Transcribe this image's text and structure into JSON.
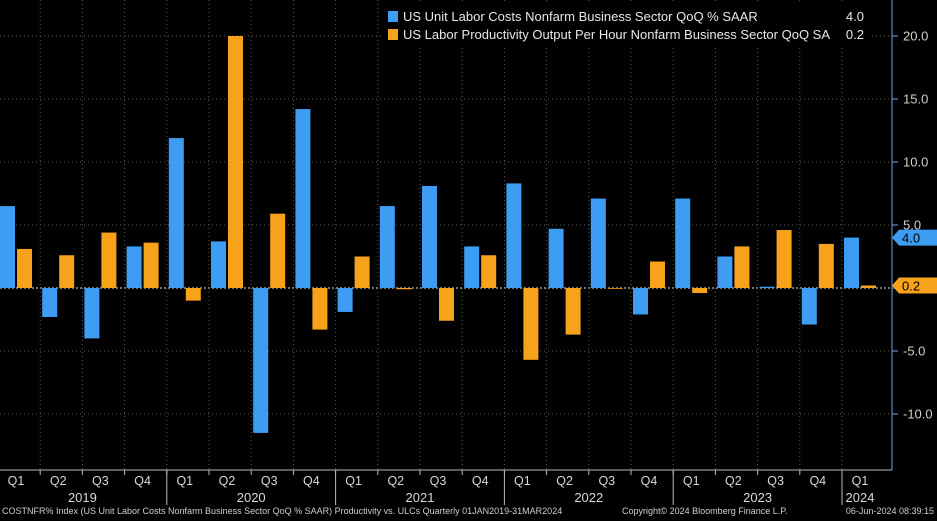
{
  "chart_data": {
    "type": "bar",
    "title": "",
    "xlabel": "",
    "ylabel": "",
    "ylim": [
      -14.5,
      23
    ],
    "yticks": [
      -10,
      -5,
      0,
      5,
      10,
      15,
      20
    ],
    "ytick_labels": [
      "-10.0",
      "-5.0",
      "",
      "5.0",
      "10.0",
      "15.0",
      "20.0"
    ],
    "categories": [
      "Q1",
      "Q2",
      "Q3",
      "Q4",
      "Q1",
      "Q2",
      "Q3",
      "Q4",
      "Q1",
      "Q2",
      "Q3",
      "Q4",
      "Q1",
      "Q2",
      "Q3",
      "Q4",
      "Q1",
      "Q2",
      "Q3",
      "Q4",
      "Q1"
    ],
    "years": [
      {
        "label": "2019",
        "start": 0,
        "count": 4
      },
      {
        "label": "2020",
        "start": 4,
        "count": 4
      },
      {
        "label": "2021",
        "start": 8,
        "count": 4
      },
      {
        "label": "2022",
        "start": 12,
        "count": 4
      },
      {
        "label": "2023",
        "start": 16,
        "count": 4
      },
      {
        "label": "2024",
        "start": 20,
        "count": 1
      }
    ],
    "series": [
      {
        "name": "US Unit Labor Costs Nonfarm Business Sector QoQ % SAAR",
        "last": "4.0",
        "color": "#3d9df3",
        "values": [
          6.5,
          -2.3,
          -4.0,
          3.3,
          11.9,
          3.7,
          -11.5,
          14.2,
          -1.9,
          6.5,
          8.1,
          3.3,
          8.3,
          4.7,
          7.1,
          -2.1,
          7.1,
          2.5,
          0.1,
          -2.9,
          4.0
        ]
      },
      {
        "name": "US Labor Productivity Output Per Hour Nonfarm Business Sector QoQ SA",
        "last": "0.2",
        "color": "#f7a21b",
        "values": [
          3.1,
          2.6,
          4.4,
          3.6,
          -1.0,
          20.0,
          5.9,
          -3.3,
          2.5,
          -0.1,
          -2.6,
          2.6,
          -5.7,
          -3.7,
          -0.05,
          2.1,
          -0.4,
          3.3,
          4.6,
          3.5,
          0.2
        ]
      }
    ]
  },
  "footer": {
    "left": "COSTNFR% Index (US Unit Labor Costs Nonfarm Business Sector QoQ % SAAR) Productivity vs. ULCs  Quarterly 01JAN2019-31MAR2024",
    "center": "Copyright© 2024 Bloomberg Finance L.P.",
    "right": "06-Jun-2024 08:39:15"
  }
}
